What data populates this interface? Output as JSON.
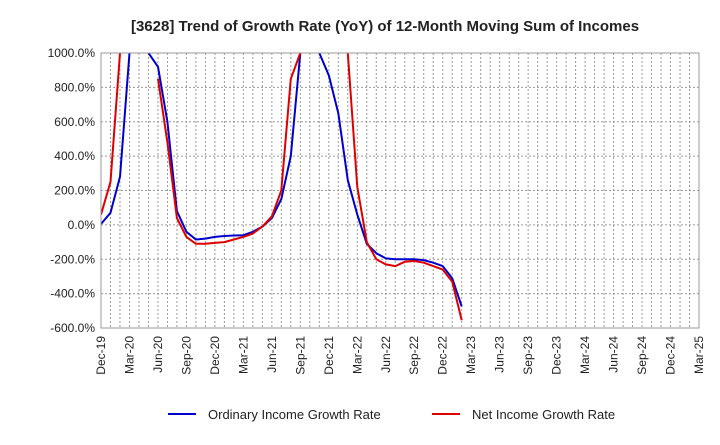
{
  "chart_data": {
    "type": "line",
    "title": "[3628]  Trend of Growth Rate (YoY) of 12-Month Moving Sum of Incomes",
    "xlabel": "",
    "ylabel": "",
    "ylim": [
      -600,
      1000
    ],
    "y_ticks": [
      1000,
      800,
      600,
      400,
      200,
      0,
      -200,
      -400,
      -600
    ],
    "y_tick_labels": [
      "1000.0%",
      "800.0%",
      "600.0%",
      "400.0%",
      "200.0%",
      "0.0%",
      "-200.0%",
      "-400.0%",
      "-600.0%"
    ],
    "x_tick_labels": [
      "Dec-19",
      "Mar-20",
      "Jun-20",
      "Sep-20",
      "Dec-20",
      "Mar-21",
      "Jun-21",
      "Sep-21",
      "Dec-21",
      "Mar-22",
      "Jun-22",
      "Sep-22",
      "Dec-22",
      "Mar-23",
      "Jun-23",
      "Sep-23",
      "Dec-23",
      "Mar-24",
      "Jun-24",
      "Sep-24",
      "Dec-24",
      "Mar-25"
    ],
    "x_range_months": [
      "2019-12",
      "2025-03"
    ],
    "grid": true,
    "legend_position": "bottom",
    "series": [
      {
        "name": "Ordinary Income Growth Rate",
        "color": "#0000cc",
        "points": [
          [
            "2019-12",
            5
          ],
          [
            "2020-01",
            70
          ],
          [
            "2020-02",
            280
          ],
          [
            "2020-03",
            1000
          ],
          [
            "2020-04",
            null
          ],
          [
            "2020-05",
            1000
          ],
          [
            "2020-06",
            920
          ],
          [
            "2020-07",
            600
          ],
          [
            "2020-08",
            80
          ],
          [
            "2020-09",
            -40
          ],
          [
            "2020-10",
            -85
          ],
          [
            "2020-11",
            -80
          ],
          [
            "2020-12",
            -70
          ],
          [
            "2021-01",
            -65
          ],
          [
            "2021-02",
            -62
          ],
          [
            "2021-03",
            -60
          ],
          [
            "2021-04",
            -40
          ],
          [
            "2021-05",
            -10
          ],
          [
            "2021-06",
            40
          ],
          [
            "2021-07",
            150
          ],
          [
            "2021-08",
            400
          ],
          [
            "2021-09",
            1000
          ],
          [
            "2021-10",
            null
          ],
          [
            "2021-11",
            1000
          ],
          [
            "2021-12",
            870
          ],
          [
            "2022-01",
            650
          ],
          [
            "2022-02",
            260
          ],
          [
            "2022-03",
            60
          ],
          [
            "2022-04",
            -110
          ],
          [
            "2022-05",
            -165
          ],
          [
            "2022-06",
            -195
          ],
          [
            "2022-07",
            -200
          ],
          [
            "2022-08",
            -200
          ],
          [
            "2022-09",
            -200
          ],
          [
            "2022-10",
            -205
          ],
          [
            "2022-11",
            -220
          ],
          [
            "2022-12",
            -240
          ],
          [
            "2023-01",
            -310
          ],
          [
            "2023-02",
            -475
          ]
        ]
      },
      {
        "name": "Net Income Growth Rate",
        "color": "#dd0000",
        "points": [
          [
            "2019-12",
            60
          ],
          [
            "2020-01",
            250
          ],
          [
            "2020-02",
            1000
          ],
          [
            "2020-03",
            null
          ],
          [
            "2020-04",
            null
          ],
          [
            "2020-05",
            null
          ],
          [
            "2020-06",
            850
          ],
          [
            "2020-07",
            480
          ],
          [
            "2020-08",
            40
          ],
          [
            "2020-09",
            -70
          ],
          [
            "2020-10",
            -110
          ],
          [
            "2020-11",
            -110
          ],
          [
            "2020-12",
            -105
          ],
          [
            "2021-01",
            -100
          ],
          [
            "2021-02",
            -85
          ],
          [
            "2021-03",
            -70
          ],
          [
            "2021-04",
            -50
          ],
          [
            "2021-05",
            -10
          ],
          [
            "2021-06",
            50
          ],
          [
            "2021-07",
            200
          ],
          [
            "2021-08",
            850
          ],
          [
            "2021-09",
            1000
          ],
          [
            "2021-10",
            null
          ],
          [
            "2021-11",
            null
          ],
          [
            "2021-12",
            null
          ],
          [
            "2022-01",
            null
          ],
          [
            "2022-02",
            1000
          ],
          [
            "2022-03",
            220
          ],
          [
            "2022-04",
            -100
          ],
          [
            "2022-05",
            -200
          ],
          [
            "2022-06",
            -230
          ],
          [
            "2022-07",
            -240
          ],
          [
            "2022-08",
            -215
          ],
          [
            "2022-09",
            -210
          ],
          [
            "2022-10",
            -220
          ],
          [
            "2022-11",
            -240
          ],
          [
            "2022-12",
            -260
          ],
          [
            "2023-01",
            -330
          ],
          [
            "2023-02",
            -555
          ]
        ]
      }
    ]
  }
}
